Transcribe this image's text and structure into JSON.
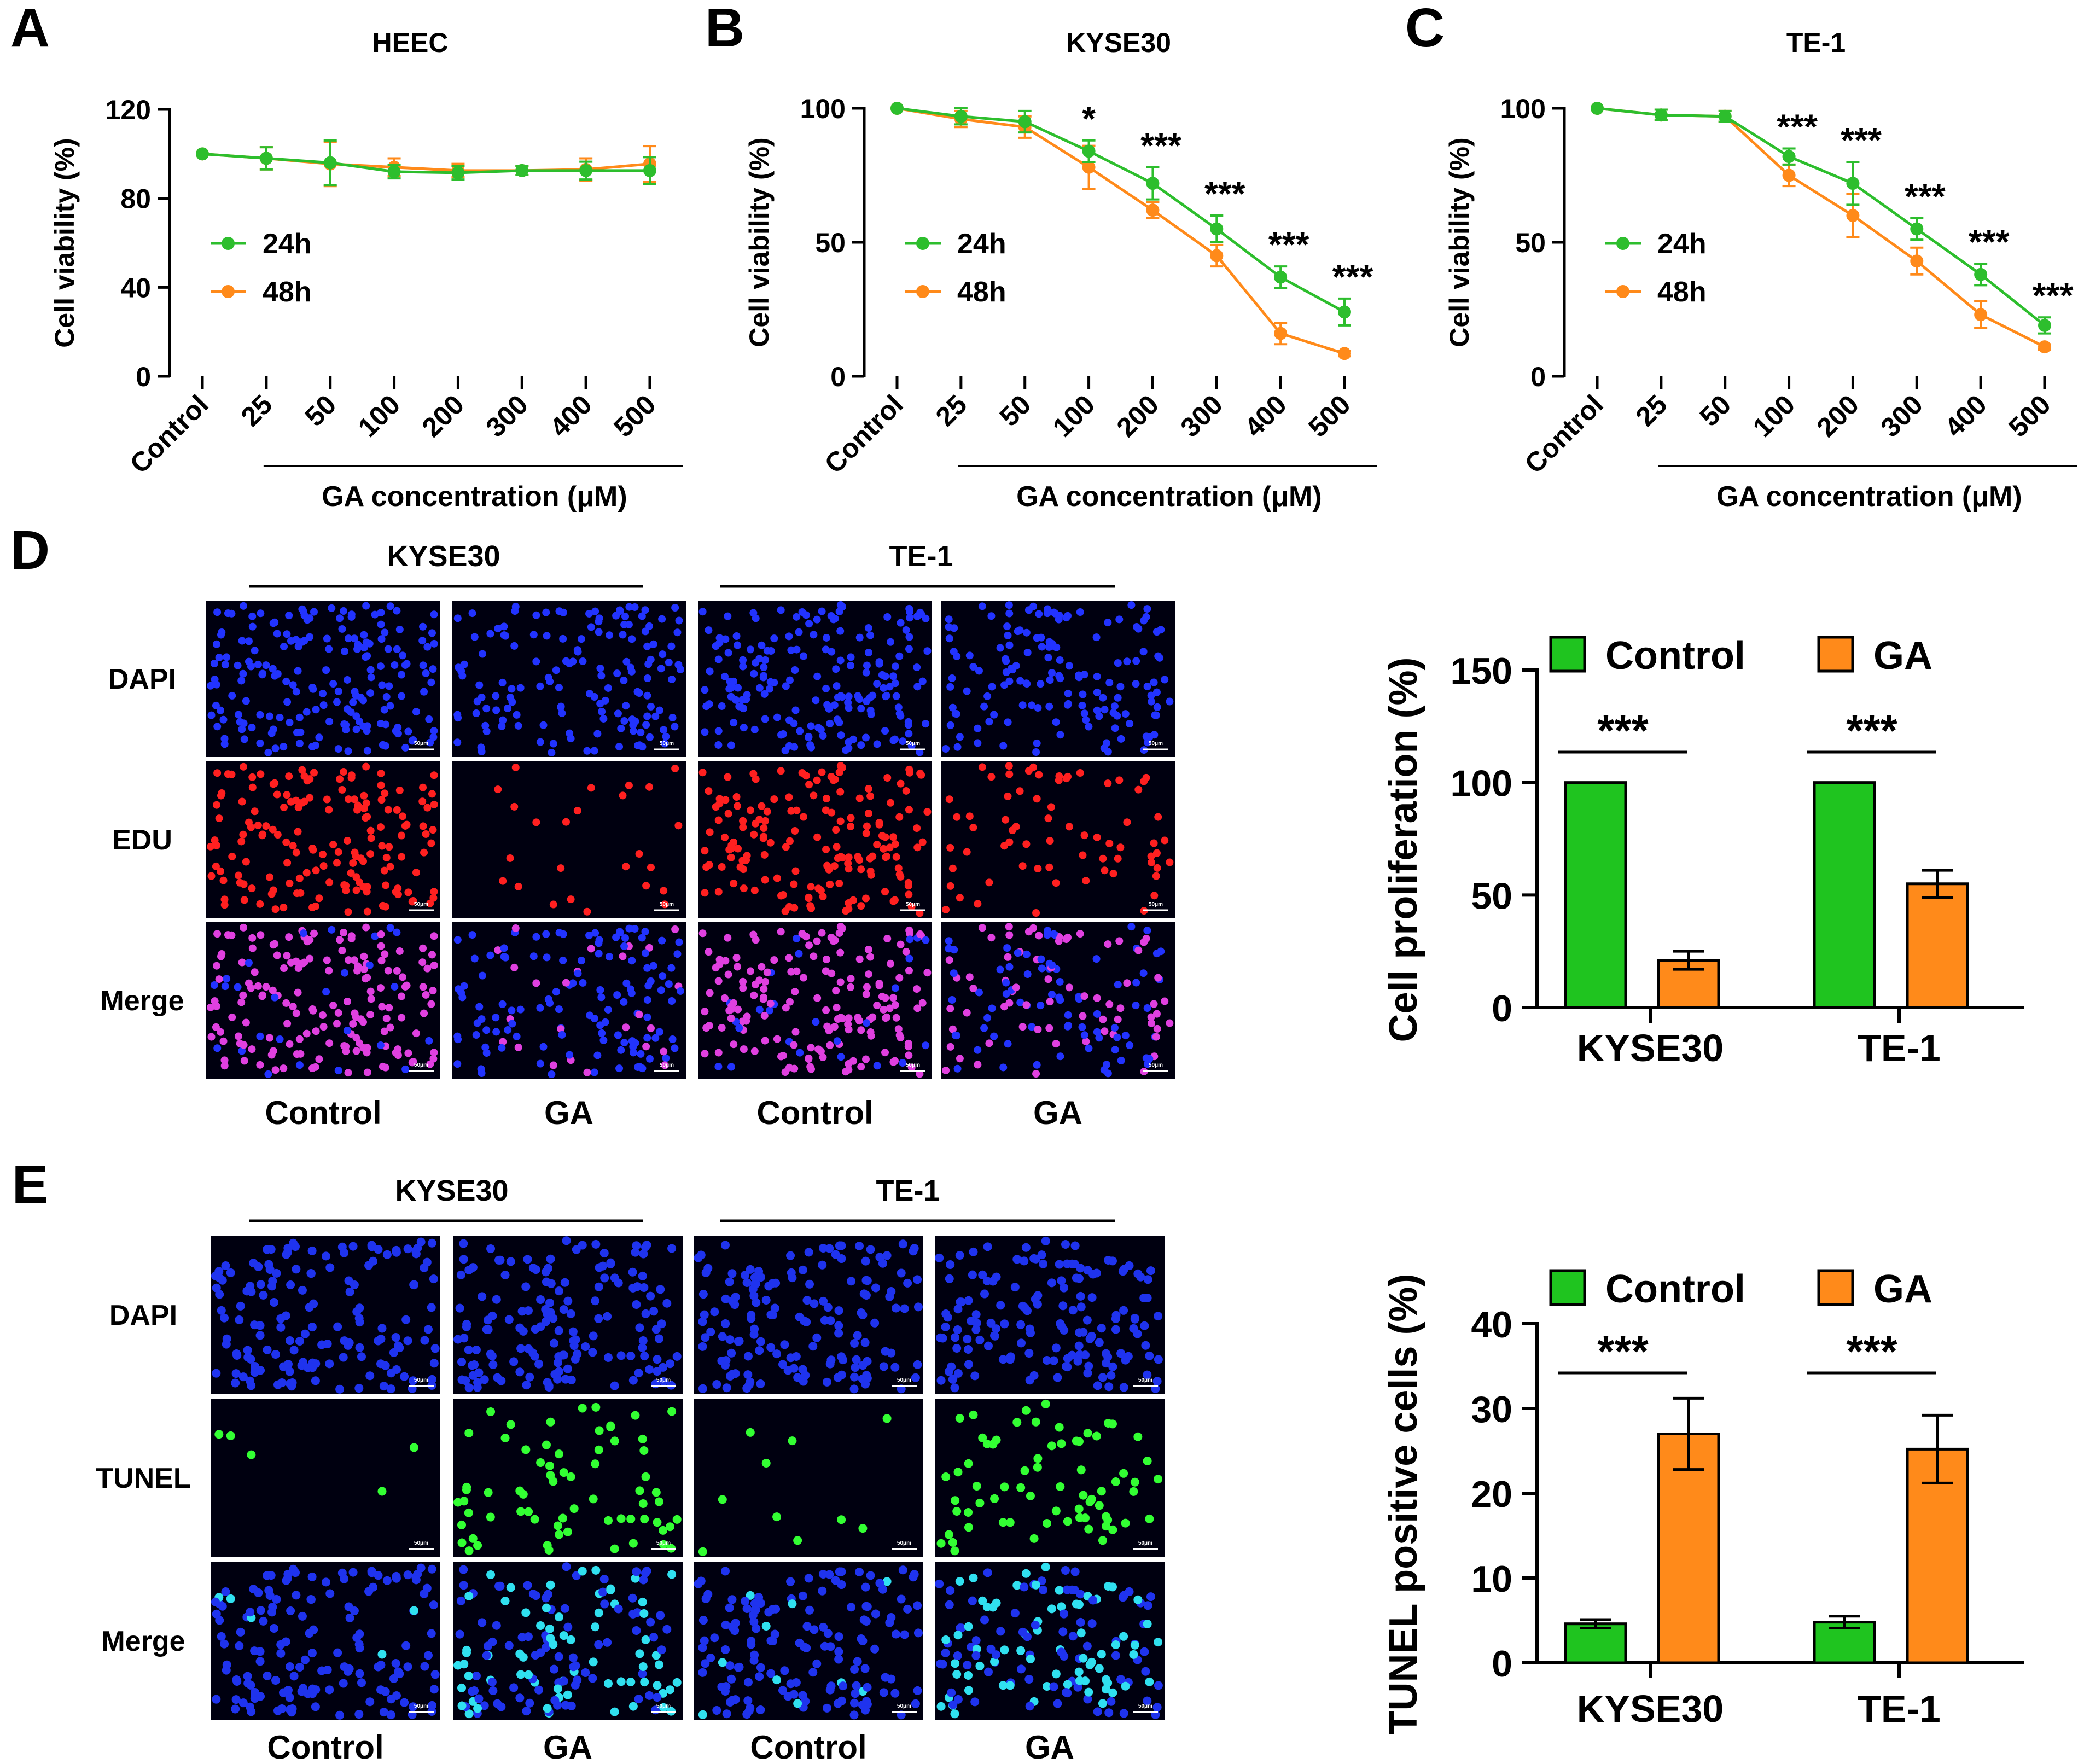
{
  "colors": {
    "series_24h": "#2DBE2D",
    "series_48h": "#FF8A1A",
    "bar_control": "#1FC41F",
    "bar_ga": "#FF8A1A"
  },
  "chart_data": [
    {
      "id": "A",
      "type": "line",
      "panel_label": "A",
      "title": "HEEC",
      "ylabel": "Cell viability (%)",
      "xlabel": "GA concentration (μM)",
      "categories": [
        "Control",
        "25",
        "50",
        "100",
        "200",
        "300",
        "400",
        "500"
      ],
      "ylim": [
        0,
        120
      ],
      "yticks": [
        0,
        40,
        80,
        120
      ],
      "series": [
        {
          "name": "24h",
          "color": "#2DBE2D",
          "values": [
            100,
            98,
            96,
            92,
            91.5,
            92.5,
            92.5,
            92.5
          ],
          "errors": [
            0,
            5,
            10,
            3,
            3,
            2,
            4,
            6
          ]
        },
        {
          "name": "48h",
          "color": "#FF8A1A",
          "values": [
            100,
            98,
            95.5,
            94,
            92.5,
            92.5,
            93,
            95.5
          ],
          "errors": [
            0,
            5,
            10,
            4,
            3,
            2,
            5,
            8
          ]
        }
      ],
      "significance": [
        "",
        "",
        "",
        "",
        "",
        "",
        "",
        ""
      ]
    },
    {
      "id": "B",
      "type": "line",
      "panel_label": "B",
      "title": "KYSE30",
      "ylabel": "Cell viability (%)",
      "xlabel": "GA concentration (μM)",
      "categories": [
        "Control",
        "25",
        "50",
        "100",
        "200",
        "300",
        "400",
        "500"
      ],
      "ylim": [
        0,
        100
      ],
      "yticks": [
        0,
        50,
        100
      ],
      "series": [
        {
          "name": "24h",
          "color": "#2DBE2D",
          "values": [
            100,
            97,
            95,
            84,
            72,
            55,
            37,
            24
          ],
          "errors": [
            0,
            3,
            4,
            4,
            6,
            5,
            4,
            5
          ]
        },
        {
          "name": "48h",
          "color": "#FF8A1A",
          "values": [
            100,
            96,
            93,
            78,
            62,
            45,
            16,
            8.5
          ],
          "errors": [
            0,
            3,
            4,
            8,
            3,
            4,
            4,
            1
          ]
        }
      ],
      "significance": [
        "",
        "",
        "",
        "*",
        "***",
        "***",
        "***",
        "***"
      ]
    },
    {
      "id": "C",
      "type": "line",
      "panel_label": "C",
      "title": "TE-1",
      "ylabel": "Cell viability (%)",
      "xlabel": "GA concentration (μM)",
      "categories": [
        "Control",
        "25",
        "50",
        "100",
        "200",
        "300",
        "400",
        "500"
      ],
      "ylim": [
        0,
        100
      ],
      "yticks": [
        0,
        50,
        100
      ],
      "series": [
        {
          "name": "24h",
          "color": "#2DBE2D",
          "values": [
            100,
            97.5,
            97,
            82,
            72,
            55,
            38,
            19
          ],
          "errors": [
            0,
            2,
            2,
            3,
            8,
            4,
            4,
            3
          ]
        },
        {
          "name": "48h",
          "color": "#FF8A1A",
          "values": [
            100,
            97.5,
            97,
            75,
            60,
            43,
            23,
            11
          ],
          "errors": [
            0,
            2,
            2,
            4,
            8,
            5,
            5,
            1
          ]
        }
      ],
      "significance": [
        "",
        "",
        "",
        "***",
        "***",
        "***",
        "***",
        "***"
      ]
    },
    {
      "id": "D-bar",
      "type": "bar",
      "panel_label": "D",
      "ylabel": "Cell proliferation (%)",
      "categories": [
        "KYSE30",
        "TE-1"
      ],
      "ylim": [
        0,
        150
      ],
      "yticks": [
        0,
        50,
        100,
        150
      ],
      "series": [
        {
          "name": "Control",
          "color": "#1FC41F",
          "values": [
            100,
            100
          ],
          "errors": [
            0,
            0
          ]
        },
        {
          "name": "GA",
          "color": "#FF8A1A",
          "values": [
            21,
            55
          ],
          "errors": [
            4,
            6
          ]
        }
      ],
      "significance": [
        "***",
        "***"
      ]
    },
    {
      "id": "E-bar",
      "type": "bar",
      "panel_label": "E",
      "ylabel": "TUNEL positive cells (%)",
      "categories": [
        "KYSE30",
        "TE-1"
      ],
      "ylim": [
        0,
        40
      ],
      "yticks": [
        0,
        10,
        20,
        30,
        40
      ],
      "series": [
        {
          "name": "Control",
          "color": "#1FC41F",
          "values": [
            4.6,
            4.8
          ],
          "errors": [
            0.5,
            0.7
          ]
        },
        {
          "name": "GA",
          "color": "#FF8A1A",
          "values": [
            27,
            25.2
          ],
          "errors": [
            4.2,
            4
          ]
        }
      ],
      "significance": [
        "***",
        "***"
      ]
    }
  ],
  "micrographs": {
    "D": {
      "groups": [
        "KYSE30",
        "TE-1"
      ],
      "columns": [
        "Control",
        "GA",
        "Control",
        "GA"
      ],
      "rows": [
        "DAPI",
        "EDU",
        "Merge"
      ],
      "scale_label": "50μm"
    },
    "E": {
      "groups": [
        "KYSE30",
        "TE-1"
      ],
      "columns": [
        "Control",
        "GA",
        "Control",
        "GA"
      ],
      "rows": [
        "DAPI",
        "TUNEL",
        "Merge"
      ],
      "scale_label": "50μm"
    }
  }
}
